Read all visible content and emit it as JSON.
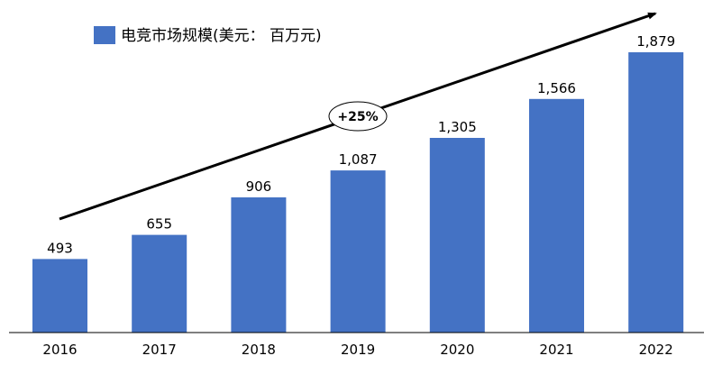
{
  "chart_data": {
    "type": "bar",
    "categories": [
      "2016",
      "2017",
      "2018",
      "2019",
      "2020",
      "2021",
      "2022"
    ],
    "series": [
      {
        "name": "电竞市场规模(美元： 百万元)",
        "values": [
          493,
          655,
          906,
          1087,
          1305,
          1566,
          1879
        ],
        "labels": [
          "493",
          "655",
          "906",
          "1,087",
          "1,305",
          "1,566",
          "1,879"
        ]
      }
    ],
    "ylim": [
      0,
      2000
    ],
    "grid": false,
    "legend_position": "top-left",
    "bar_color": "#4472C4",
    "annotation": {
      "text": "+25%"
    }
  }
}
